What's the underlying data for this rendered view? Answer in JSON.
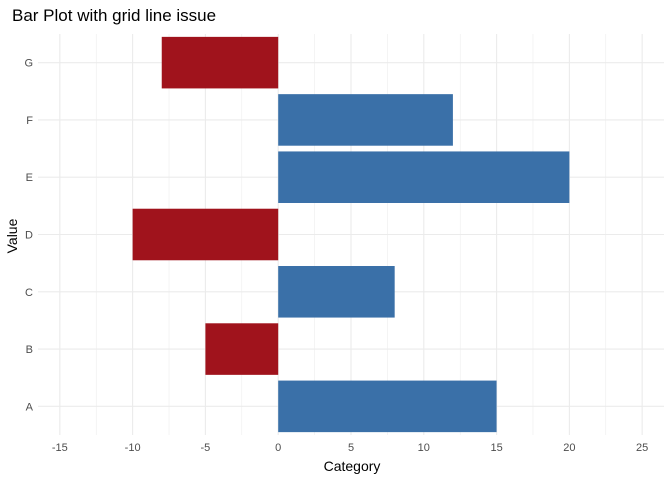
{
  "chart_data": {
    "type": "bar",
    "orientation": "horizontal",
    "title": "Bar Plot with grid line issue",
    "xlabel": "Category",
    "ylabel": "Value",
    "categories": [
      "A",
      "B",
      "C",
      "D",
      "E",
      "F",
      "G"
    ],
    "values": [
      15,
      -5,
      8,
      -10,
      20,
      12,
      -8
    ],
    "xlim": [
      -16.5,
      26.5
    ],
    "xticks": [
      -15,
      -10,
      -5,
      0,
      5,
      10,
      15,
      20,
      25
    ],
    "grid": true,
    "legend": "none",
    "colors": {
      "positive": "#3a70a8",
      "negative": "#a0131c",
      "grid": "#ebebeb",
      "background": "#ffffff"
    }
  }
}
